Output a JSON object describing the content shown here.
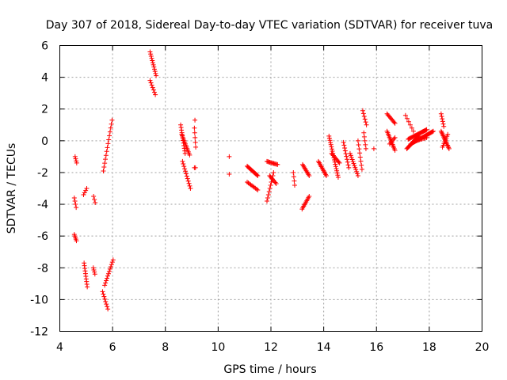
{
  "chart_data": {
    "type": "scatter",
    "title": "Day 307 of 2018, Sidereal Day-to-day VTEC variation (SDTVAR) for receiver tuva",
    "xlabel": "GPS time / hours",
    "ylabel": "SDTVAR / TECUs",
    "xlim": [
      4,
      20
    ],
    "ylim": [
      -12,
      6
    ],
    "xticks": [
      "4",
      "6",
      "8",
      "10",
      "12",
      "14",
      "16",
      "18",
      "20"
    ],
    "yticks": [
      "6",
      "4",
      "2",
      "0",
      "-2",
      "-4",
      "-6",
      "-8",
      "-10",
      "-12"
    ],
    "grid": true,
    "marker": "+",
    "color": "#ff0000",
    "segments": [
      {
        "x0": 4.58,
        "y0": -1.0,
        "x1": 4.64,
        "y1": -1.4,
        "n": 4
      },
      {
        "x0": 4.55,
        "y0": -3.6,
        "x1": 4.62,
        "y1": -4.2,
        "n": 4
      },
      {
        "x0": 4.55,
        "y0": -5.9,
        "x1": 4.63,
        "y1": -6.3,
        "n": 5
      },
      {
        "x0": 4.9,
        "y0": -3.4,
        "x1": 5.02,
        "y1": -3.0,
        "n": 4
      },
      {
        "x0": 4.92,
        "y0": -7.7,
        "x1": 5.04,
        "y1": -9.2,
        "n": 10
      },
      {
        "x0": 5.28,
        "y0": -3.5,
        "x1": 5.34,
        "y1": -3.9,
        "n": 3
      },
      {
        "x0": 5.27,
        "y0": -8.0,
        "x1": 5.33,
        "y1": -8.4,
        "n": 4
      },
      {
        "x0": 5.65,
        "y0": -1.9,
        "x1": 5.98,
        "y1": 1.3,
        "n": 14
      },
      {
        "x0": 5.62,
        "y0": -9.5,
        "x1": 5.82,
        "y1": -10.6,
        "n": 8
      },
      {
        "x0": 5.7,
        "y0": -9.1,
        "x1": 6.02,
        "y1": -7.5,
        "n": 12
      },
      {
        "x0": 7.42,
        "y0": 5.6,
        "x1": 7.65,
        "y1": 4.1,
        "n": 12
      },
      {
        "x0": 7.42,
        "y0": 3.8,
        "x1": 7.62,
        "y1": 2.9,
        "n": 7
      },
      {
        "x0": 8.58,
        "y0": 1.0,
        "x1": 8.75,
        "y1": -0.8,
        "n": 12
      },
      {
        "x0": 8.62,
        "y0": 0.4,
        "x1": 8.92,
        "y1": -0.9,
        "n": 14
      },
      {
        "x0": 8.65,
        "y0": -1.3,
        "x1": 8.95,
        "y1": -3.0,
        "n": 12
      },
      {
        "x0": 9.1,
        "y0": 0.8,
        "x1": 9.15,
        "y1": -0.4,
        "n": 5
      },
      {
        "x0": 9.12,
        "y0": 1.3,
        "x1": 9.12,
        "y1": 1.3,
        "n": 1
      },
      {
        "x0": 9.1,
        "y0": -1.7,
        "x1": 9.14,
        "y1": -1.7,
        "n": 2
      },
      {
        "x0": 10.42,
        "y0": -1.0,
        "x1": 10.42,
        "y1": -1.0,
        "n": 1
      },
      {
        "x0": 10.42,
        "y0": -2.1,
        "x1": 10.42,
        "y1": -2.1,
        "n": 1
      },
      {
        "x0": 11.1,
        "y0": -1.6,
        "x1": 11.5,
        "y1": -2.2,
        "n": 14
      },
      {
        "x0": 11.1,
        "y0": -2.6,
        "x1": 11.5,
        "y1": -3.1,
        "n": 10
      },
      {
        "x0": 11.85,
        "y0": -3.8,
        "x1": 12.1,
        "y1": -2.0,
        "n": 10
      },
      {
        "x0": 11.85,
        "y0": -1.3,
        "x1": 12.25,
        "y1": -1.5,
        "n": 12
      },
      {
        "x0": 11.95,
        "y0": -2.2,
        "x1": 12.2,
        "y1": -2.7,
        "n": 8
      },
      {
        "x0": 12.85,
        "y0": -2.0,
        "x1": 12.9,
        "y1": -2.8,
        "n": 4
      },
      {
        "x0": 13.18,
        "y0": -4.3,
        "x1": 13.45,
        "y1": -3.5,
        "n": 10
      },
      {
        "x0": 13.2,
        "y0": -1.5,
        "x1": 13.45,
        "y1": -2.2,
        "n": 10
      },
      {
        "x0": 13.8,
        "y0": -1.3,
        "x1": 14.1,
        "y1": -2.2,
        "n": 12
      },
      {
        "x0": 14.2,
        "y0": 0.3,
        "x1": 14.55,
        "y1": -2.3,
        "n": 20
      },
      {
        "x0": 14.3,
        "y0": -0.8,
        "x1": 14.6,
        "y1": -1.4,
        "n": 10
      },
      {
        "x0": 14.75,
        "y0": -0.1,
        "x1": 14.95,
        "y1": -1.7,
        "n": 10
      },
      {
        "x0": 15.0,
        "y0": -0.8,
        "x1": 15.3,
        "y1": -2.2,
        "n": 12
      },
      {
        "x0": 15.3,
        "y0": 0.0,
        "x1": 15.45,
        "y1": -1.8,
        "n": 8
      },
      {
        "x0": 15.48,
        "y0": 1.9,
        "x1": 15.62,
        "y1": 1.0,
        "n": 6
      },
      {
        "x0": 15.52,
        "y0": 0.5,
        "x1": 15.6,
        "y1": -0.5,
        "n": 5
      },
      {
        "x0": 15.9,
        "y0": -0.5,
        "x1": 15.9,
        "y1": -0.5,
        "n": 1
      },
      {
        "x0": 16.4,
        "y0": 1.7,
        "x1": 16.7,
        "y1": 1.1,
        "n": 10
      },
      {
        "x0": 16.4,
        "y0": 0.6,
        "x1": 16.7,
        "y1": -0.6,
        "n": 14
      },
      {
        "x0": 16.5,
        "y0": -0.2,
        "x1": 16.7,
        "y1": 0.2,
        "n": 6
      },
      {
        "x0": 17.1,
        "y0": 1.6,
        "x1": 17.4,
        "y1": 0.6,
        "n": 6
      },
      {
        "x0": 17.15,
        "y0": -0.5,
        "x1": 17.6,
        "y1": 0.3,
        "n": 18
      },
      {
        "x0": 17.2,
        "y0": 0.1,
        "x1": 17.9,
        "y1": 0.7,
        "n": 24
      },
      {
        "x0": 17.3,
        "y0": -0.2,
        "x1": 18.15,
        "y1": 0.6,
        "n": 30
      },
      {
        "x0": 17.5,
        "y0": 0.0,
        "x1": 17.9,
        "y1": 0.2,
        "n": 10
      },
      {
        "x0": 18.45,
        "y0": 1.7,
        "x1": 18.55,
        "y1": 0.9,
        "n": 6
      },
      {
        "x0": 18.45,
        "y0": 0.6,
        "x1": 18.75,
        "y1": -0.5,
        "n": 16
      },
      {
        "x0": 18.5,
        "y0": -0.4,
        "x1": 18.7,
        "y1": 0.4,
        "n": 8
      }
    ]
  }
}
